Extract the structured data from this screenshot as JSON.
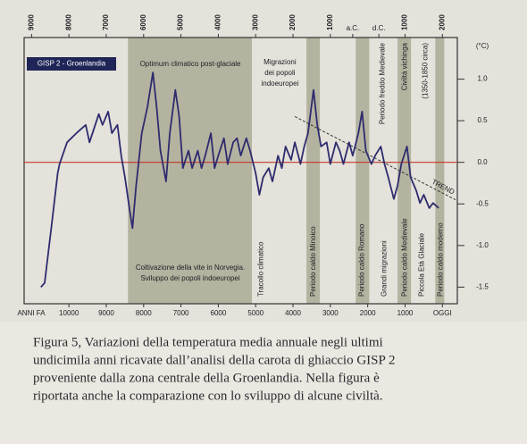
{
  "chart_data": {
    "type": "line",
    "title": "GISP 2 - Groenlandia",
    "x_label": "ANNI FA",
    "y_label": "(°C)",
    "color": "#2e2b6e",
    "zero_line_color": "#c0392b",
    "band_color": "#b4b3a0",
    "xlim": [
      11200,
      -400
    ],
    "ylim": [
      -1.7,
      1.5
    ],
    "xticks": [
      10000,
      9000,
      8000,
      7000,
      6000,
      5000,
      4000,
      3000,
      2000,
      1000,
      {
        "value": 0,
        "label": "OGGI"
      }
    ],
    "x2ticks": [
      {
        "value": 11000,
        "label": "9000"
      },
      {
        "value": 10000,
        "label": "8000"
      },
      {
        "value": 9000,
        "label": "7000"
      },
      {
        "value": 8000,
        "label": "6000"
      },
      {
        "value": 7000,
        "label": "5000"
      },
      {
        "value": 6000,
        "label": "4000"
      },
      {
        "value": 5000,
        "label": "3000"
      },
      {
        "value": 4000,
        "label": "2000"
      },
      {
        "value": 3000,
        "label": "1000"
      },
      {
        "value": 2400,
        "label": "a.C."
      },
      {
        "value": 1700,
        "label": "d.C."
      },
      {
        "value": 1000,
        "label": "1000"
      },
      {
        "value": 0,
        "label": "2000"
      }
    ],
    "yticks": [
      {
        "value": 1.0,
        "label": "1.0"
      },
      {
        "value": 0.5,
        "label": "0.5"
      },
      {
        "value": 0,
        "label": "0.0"
      },
      {
        "value": -0.5,
        "label": "-0.5"
      },
      {
        "value": -1.0,
        "label": "-1.0"
      },
      {
        "value": -1.5,
        "label": "-1.5"
      }
    ],
    "x": [
      10750,
      10650,
      10450,
      10300,
      10250,
      10050,
      9800,
      9550,
      9450,
      9200,
      9100,
      8950,
      8850,
      8700,
      8600,
      8500,
      8350,
      8300,
      8200,
      8050,
      7900,
      7750,
      7650,
      7550,
      7400,
      7300,
      7150,
      7050,
      6950,
      6800,
      6700,
      6550,
      6450,
      6350,
      6200,
      6100,
      6000,
      5850,
      5750,
      5600,
      5500,
      5400,
      5250,
      5150,
      5000,
      4900,
      4800,
      4650,
      4550,
      4400,
      4300,
      4200,
      4050,
      3950,
      3800,
      3700,
      3600,
      3450,
      3350,
      3250,
      3100,
      3000,
      2850,
      2750,
      2650,
      2500,
      2400,
      2250,
      2150,
      2050,
      1900,
      1800,
      1650,
      1550,
      1450,
      1300,
      1200,
      1100,
      950,
      850,
      700,
      600,
      500,
      350,
      250,
      100
    ],
    "values": [
      -1.5,
      -1.45,
      -0.7,
      -0.13,
      -0.02,
      0.24,
      0.35,
      0.45,
      0.24,
      0.58,
      0.45,
      0.61,
      0.35,
      0.45,
      0.08,
      -0.18,
      -0.65,
      -0.79,
      -0.28,
      0.35,
      0.66,
      1.08,
      0.66,
      0.14,
      -0.23,
      0.35,
      0.87,
      0.56,
      -0.07,
      0.14,
      -0.07,
      0.14,
      -0.07,
      0.08,
      0.35,
      -0.07,
      0.08,
      0.29,
      -0.02,
      0.24,
      0.29,
      0.08,
      0.29,
      0.14,
      -0.13,
      -0.39,
      -0.18,
      -0.07,
      -0.23,
      0.08,
      -0.07,
      0.19,
      0.03,
      0.24,
      -0.02,
      0.19,
      0.35,
      0.87,
      0.45,
      0.19,
      0.24,
      -0.02,
      0.24,
      0.14,
      -0.02,
      0.24,
      0.08,
      0.35,
      0.61,
      0.14,
      -0.02,
      0.08,
      0.19,
      -0.02,
      -0.18,
      -0.44,
      -0.28,
      -0.02,
      0.19,
      -0.18,
      -0.34,
      -0.49,
      -0.39,
      -0.55,
      -0.49,
      -0.55
    ],
    "bands": [
      [
        8420,
        5100
      ],
      [
        3640,
        3280
      ],
      [
        2320,
        1960
      ],
      [
        1200,
        840
      ],
      [
        190,
        -50
      ]
    ],
    "annotations_bottom": [
      {
        "text": "Tracollo climatico",
        "x": 4850
      },
      {
        "text": "Periodo caldo Minoico",
        "x": 3450
      },
      {
        "text": "Periodo caldo Romano",
        "x": 2150
      },
      {
        "text": "Grandi migrazioni",
        "x": 1550
      },
      {
        "text": "Periodo caldo Medievale",
        "x": 1000
      },
      {
        "text": "Piccola Età Glaciale",
        "x": 550
      },
      {
        "text": "Periodo caldo moderno",
        "x": 50
      }
    ],
    "annotations_top": [
      {
        "text": "Periodo freddo Medievale",
        "x": 1600
      },
      {
        "text": "Civiltà vichinga",
        "x": 1000
      },
      {
        "text": "(1350-1850 circa)",
        "x": 450
      }
    ],
    "notes": [
      {
        "lines": [
          "Optimum climatico post-glaciale"
        ],
        "x": 6750,
        "y": 1.18
      },
      {
        "lines": [
          "Migrazioni",
          "dei popoli",
          "indoeuropei"
        ],
        "x": 4350,
        "y": 1.2
      },
      {
        "lines": [
          "Coltivazione della vite in Norvegia.",
          "Sviluppo dei popoli indoeuropei"
        ],
        "x": 6750,
        "y": -1.27
      }
    ],
    "trend": {
      "label": "TREND",
      "from": [
        3950,
        0.55
      ],
      "to": [
        -350,
        -0.45
      ]
    }
  },
  "caption": {
    "lines": [
      "Figura 5, Variazioni della temperatura media annuale negli ultimi",
      "undicimila anni ricavate dall’analisi della carota di ghiaccio GISP 2",
      "proveniente dalla zona centrale della Groenlandia. Nella figura è",
      "riportata anche la comparazione con lo sviluppo di alcune civiltà."
    ]
  }
}
